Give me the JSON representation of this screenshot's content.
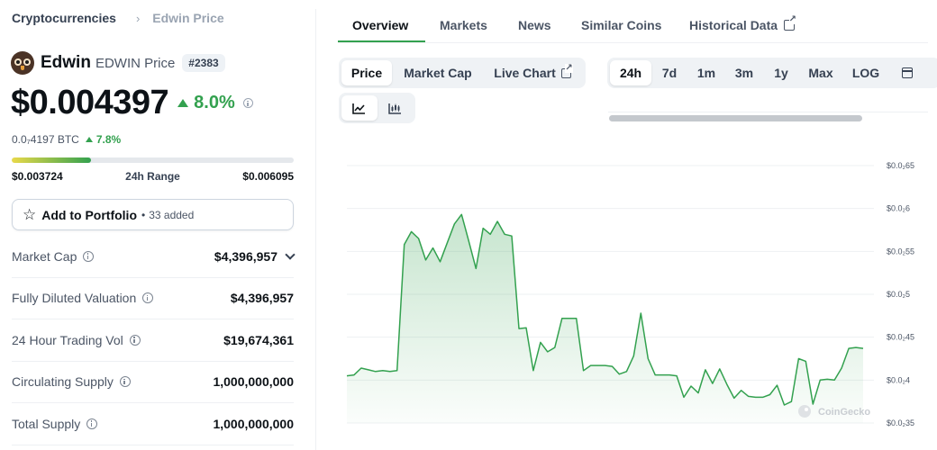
{
  "breadcrumb": {
    "parent": "Cryptocurrencies",
    "separator": "›",
    "current": "Edwin Price"
  },
  "coin": {
    "name": "Edwin",
    "symbol_label": "EDWIN Price",
    "rank": "#2383",
    "logo_icon": "owl-logo"
  },
  "price": {
    "usd": "$0.004397",
    "change": "8.0%",
    "btc": "0.0₇4197 BTC",
    "btc_change": "7.8%",
    "up_color": "#33a14f"
  },
  "range": {
    "low": "$0.003724",
    "label": "24h Range",
    "high": "$0.006095",
    "position_fraction": 0.28
  },
  "portfolio": {
    "label": "Add to Portfolio",
    "dot": "•",
    "count": "33 added"
  },
  "stats": [
    {
      "label": "Market Cap",
      "value": "$4,396,957"
    },
    {
      "label": "Fully Diluted Valuation",
      "value": "$4,396,957"
    },
    {
      "label": "24 Hour Trading Vol",
      "value": "$19,674,361"
    },
    {
      "label": "Circulating Supply",
      "value": "1,000,000,000"
    },
    {
      "label": "Total Supply",
      "value": "1,000,000,000"
    }
  ],
  "tabs": [
    "Overview",
    "Markets",
    "News",
    "Similar Coins",
    "Historical Data"
  ],
  "active_tab": "Overview",
  "chart_types": [
    "Price",
    "Market Cap",
    "Live Chart"
  ],
  "active_chart_type": "Price",
  "time_ranges": [
    "24h",
    "7d",
    "1m",
    "3m",
    "1y",
    "Max",
    "LOG"
  ],
  "active_time_range": "24h",
  "view_icons": [
    "line-chart-icon",
    "candlestick-chart-icon"
  ],
  "watermark": "CoinGecko",
  "chart_data": {
    "type": "area",
    "title": "",
    "xlabel": "",
    "ylabel": "",
    "y_tick_labels": [
      "$0.0₂65",
      "$0.0₂6",
      "$0.0₂55",
      "$0.0₂5",
      "$0.0₂45",
      "$0.0₂4",
      "$0.0₂35"
    ],
    "y_ticks": [
      0.0065,
      0.006,
      0.0055,
      0.005,
      0.0045,
      0.004,
      0.0035
    ],
    "ylim": [
      0.0035,
      0.0065
    ],
    "grid": true,
    "series": [
      {
        "values": [
          0.00405,
          0.00406,
          0.00414,
          0.00412,
          0.0041,
          0.00411,
          0.0041,
          0.00411,
          0.00558,
          0.00573,
          0.00565,
          0.0054,
          0.00554,
          0.00538,
          0.0056,
          0.00582,
          0.00593,
          0.00562,
          0.0053,
          0.00577,
          0.0057,
          0.00585,
          0.0057,
          0.00568,
          0.0046,
          0.00461,
          0.00411,
          0.00444,
          0.00433,
          0.00438,
          0.00472,
          0.00472,
          0.00472,
          0.00411,
          0.00417,
          0.00417,
          0.00417,
          0.00416,
          0.00407,
          0.0041,
          0.00428,
          0.00478,
          0.00425,
          0.00406,
          0.00406,
          0.00406,
          0.00405,
          0.0038,
          0.00393,
          0.00385,
          0.00412,
          0.00396,
          0.00413,
          0.00395,
          0.00379,
          0.00388,
          0.00381,
          0.0038,
          0.0038,
          0.00383,
          0.00394,
          0.00371,
          0.00375,
          0.00425,
          0.00422,
          0.00372,
          0.004,
          0.00401,
          0.004,
          0.00414,
          0.00437,
          0.00438,
          0.00437
        ],
        "color": "#33a14f"
      }
    ]
  }
}
